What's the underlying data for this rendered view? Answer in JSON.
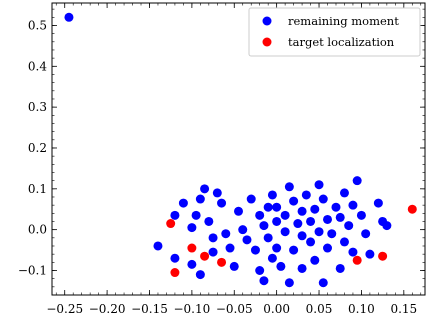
{
  "chart_data": {
    "type": "scatter",
    "title": "",
    "xlabel": "",
    "ylabel": "",
    "xlim": [
      -0.265,
      0.175
    ],
    "ylim": [
      -0.16,
      0.555
    ],
    "xticks": [
      -0.25,
      -0.2,
      -0.15,
      -0.1,
      -0.05,
      0.0,
      0.05,
      0.1,
      0.15
    ],
    "xtick_labels": [
      "−0.25",
      "−0.20",
      "−0.15",
      "−0.10",
      "−0.05",
      "0.00",
      "0.05",
      "0.10",
      "0.15"
    ],
    "yticks": [
      -0.1,
      0.0,
      0.1,
      0.2,
      0.3,
      0.4,
      0.5
    ],
    "ytick_labels": [
      "−0.1",
      "0.0",
      "0.1",
      "0.2",
      "0.3",
      "0.4",
      "0.5"
    ],
    "grid": false,
    "legend_position": "top-right",
    "series": [
      {
        "name": "remaining moment",
        "color": "#0000ff",
        "points": [
          [
            -0.245,
            0.52
          ],
          [
            -0.14,
            -0.04
          ],
          [
            -0.12,
            0.035
          ],
          [
            -0.12,
            -0.07
          ],
          [
            -0.11,
            0.065
          ],
          [
            -0.1,
            0.005
          ],
          [
            -0.1,
            -0.085
          ],
          [
            -0.095,
            0.035
          ],
          [
            -0.09,
            0.075
          ],
          [
            -0.09,
            -0.11
          ],
          [
            -0.085,
            0.1
          ],
          [
            -0.08,
            0.02
          ],
          [
            -0.075,
            -0.02
          ],
          [
            -0.075,
            -0.055
          ],
          [
            -0.07,
            0.09
          ],
          [
            -0.065,
            0.065
          ],
          [
            -0.06,
            -0.01
          ],
          [
            -0.055,
            -0.045
          ],
          [
            -0.05,
            -0.09
          ],
          [
            -0.045,
            0.045
          ],
          [
            -0.04,
            0.0
          ],
          [
            -0.035,
            -0.025
          ],
          [
            -0.03,
            0.075
          ],
          [
            -0.025,
            -0.05
          ],
          [
            -0.02,
            -0.1
          ],
          [
            -0.02,
            0.035
          ],
          [
            -0.015,
            0.01
          ],
          [
            -0.01,
            -0.02
          ],
          [
            -0.01,
            0.055
          ],
          [
            -0.005,
            0.085
          ],
          [
            -0.005,
            -0.07
          ],
          [
            0.0,
            -0.045
          ],
          [
            0.0,
            0.02
          ],
          [
            0.0,
            0.055
          ],
          [
            -0.015,
            -0.125
          ],
          [
            0.005,
            -0.09
          ],
          [
            0.01,
            0.035
          ],
          [
            0.01,
            -0.005
          ],
          [
            0.015,
            0.105
          ],
          [
            0.015,
            -0.13
          ],
          [
            0.02,
            0.07
          ],
          [
            0.02,
            -0.05
          ],
          [
            0.025,
            0.015
          ],
          [
            0.03,
            -0.015
          ],
          [
            0.03,
            0.045
          ],
          [
            0.03,
            -0.095
          ],
          [
            0.035,
            0.085
          ],
          [
            0.04,
            -0.03
          ],
          [
            0.04,
            0.02
          ],
          [
            0.045,
            -0.075
          ],
          [
            0.045,
            0.05
          ],
          [
            0.05,
            0.11
          ],
          [
            0.05,
            -0.005
          ],
          [
            0.055,
            -0.13
          ],
          [
            0.055,
            0.075
          ],
          [
            0.06,
            -0.045
          ],
          [
            0.06,
            0.025
          ],
          [
            0.065,
            -0.01
          ],
          [
            0.07,
            0.055
          ],
          [
            0.075,
            -0.095
          ],
          [
            0.075,
            0.03
          ],
          [
            0.08,
            0.09
          ],
          [
            0.08,
            -0.03
          ],
          [
            0.085,
            0.01
          ],
          [
            0.09,
            0.06
          ],
          [
            0.09,
            -0.055
          ],
          [
            0.095,
            0.12
          ],
          [
            0.1,
            0.035
          ],
          [
            0.105,
            -0.01
          ],
          [
            0.11,
            -0.06
          ],
          [
            0.12,
            0.065
          ],
          [
            0.125,
            0.02
          ],
          [
            0.13,
            0.01
          ]
        ]
      },
      {
        "name": "target localization",
        "color": "#ff0000",
        "points": [
          [
            -0.125,
            0.015
          ],
          [
            -0.12,
            -0.105
          ],
          [
            -0.1,
            -0.045
          ],
          [
            -0.085,
            -0.065
          ],
          [
            -0.065,
            -0.08
          ],
          [
            0.095,
            -0.075
          ],
          [
            0.125,
            -0.065
          ],
          [
            0.16,
            0.05
          ]
        ]
      }
    ]
  }
}
